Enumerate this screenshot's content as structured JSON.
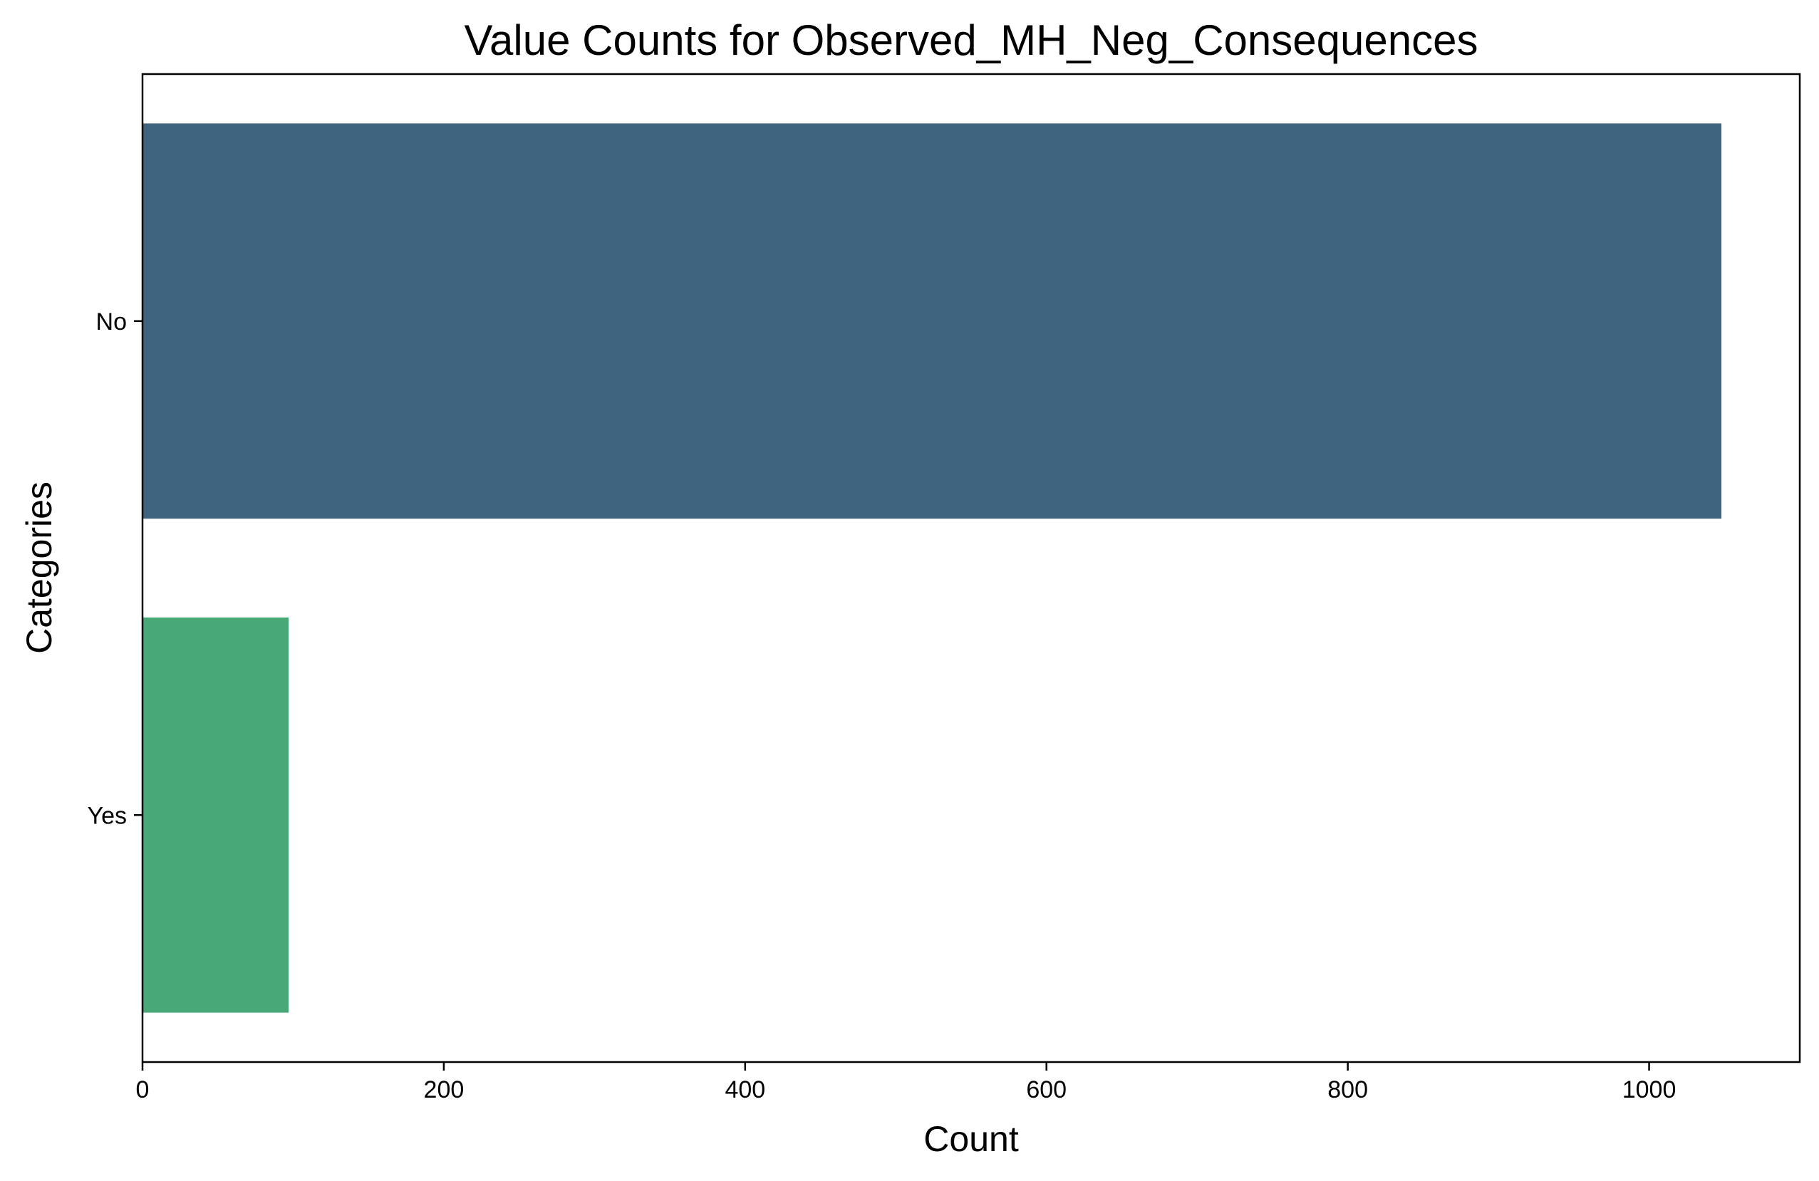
{
  "chart_data": {
    "type": "bar",
    "orientation": "horizontal",
    "title": "Value Counts for Observed_MH_Neg_Consequences",
    "xlabel": "Count",
    "ylabel": "Categories",
    "categories": [
      "No",
      "Yes"
    ],
    "values": [
      1048,
      97
    ],
    "colors": [
      "#3e6480",
      "#48a878"
    ],
    "xlim": [
      0,
      1100
    ],
    "xticks": [
      0,
      200,
      400,
      600,
      800,
      1000
    ],
    "grid": false,
    "legend": "none"
  }
}
